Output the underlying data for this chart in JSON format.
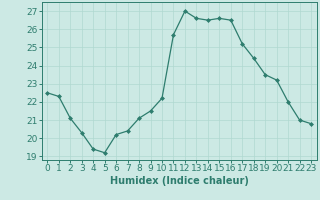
{
  "x": [
    0,
    1,
    2,
    3,
    4,
    5,
    6,
    7,
    8,
    9,
    10,
    11,
    12,
    13,
    14,
    15,
    16,
    17,
    18,
    19,
    20,
    21,
    22,
    23
  ],
  "y": [
    22.5,
    22.3,
    21.1,
    20.3,
    19.4,
    19.2,
    20.2,
    20.4,
    21.1,
    21.5,
    22.2,
    25.7,
    27.0,
    26.6,
    26.5,
    26.6,
    26.5,
    25.2,
    24.4,
    23.5,
    23.2,
    22.0,
    21.0,
    20.8
  ],
  "line_color": "#2e7d6e",
  "marker": "D",
  "marker_size": 2,
  "bg_color": "#cce9e4",
  "grid_color": "#b0d8d0",
  "xlabel": "Humidex (Indice chaleur)",
  "ylim": [
    18.8,
    27.5
  ],
  "xlim": [
    -0.5,
    23.5
  ],
  "yticks": [
    19,
    20,
    21,
    22,
    23,
    24,
    25,
    26,
    27
  ],
  "xticks": [
    0,
    1,
    2,
    3,
    4,
    5,
    6,
    7,
    8,
    9,
    10,
    11,
    12,
    13,
    14,
    15,
    16,
    17,
    18,
    19,
    20,
    21,
    22,
    23
  ],
  "xtick_labels": [
    "0",
    "1",
    "2",
    "3",
    "4",
    "5",
    "6",
    "7",
    "8",
    "9",
    "10",
    "11",
    "12",
    "13",
    "14",
    "15",
    "16",
    "17",
    "18",
    "19",
    "20",
    "21",
    "22",
    "23"
  ],
  "label_fontsize": 7,
  "tick_fontsize": 6.5
}
